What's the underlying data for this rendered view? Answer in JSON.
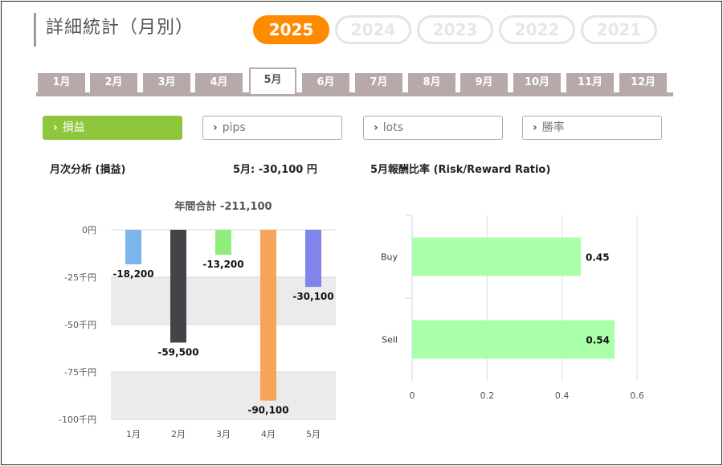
{
  "title": "詳細統計（月別）",
  "years": [
    {
      "label": "2025",
      "active": true
    },
    {
      "label": "2024",
      "active": false
    },
    {
      "label": "2023",
      "active": false
    },
    {
      "label": "2022",
      "active": false
    },
    {
      "label": "2021",
      "active": false
    }
  ],
  "months": [
    {
      "label": "1月",
      "active": false
    },
    {
      "label": "2月",
      "active": false
    },
    {
      "label": "3月",
      "active": false
    },
    {
      "label": "4月",
      "active": false
    },
    {
      "label": "5月",
      "active": true
    },
    {
      "label": "6月",
      "active": false
    },
    {
      "label": "7月",
      "active": false
    },
    {
      "label": "8月",
      "active": false
    },
    {
      "label": "9月",
      "active": false
    },
    {
      "label": "10月",
      "active": false
    },
    {
      "label": "11月",
      "active": false
    },
    {
      "label": "12月",
      "active": false
    }
  ],
  "filters": [
    {
      "label": "損益",
      "active": true
    },
    {
      "label": "pips",
      "active": false
    },
    {
      "label": "lots",
      "active": false
    },
    {
      "label": "勝率",
      "active": false
    }
  ],
  "left_header": "月次分析 (損益)",
  "month_summary": "5月:  -30,100 円",
  "right_header": "5月報酬比率 (Risk/Reward Ratio)",
  "colors": {
    "accent": "#ff8a00",
    "filter_active": "#8ec73b",
    "tab": "#b7a9a9"
  },
  "chart_data": [
    {
      "type": "bar",
      "title": "年間合計 -211,100",
      "categories": [
        "1月",
        "2月",
        "3月",
        "4月",
        "5月"
      ],
      "values": [
        -18200,
        -59500,
        -13200,
        -90100,
        -30100
      ],
      "value_labels": [
        "-18,200",
        "-59,500",
        "-13,200",
        "-90,100",
        "-30,100"
      ],
      "colors": [
        "#7cb5ec",
        "#434348",
        "#90ed7d",
        "#f7a35c",
        "#8085e9"
      ],
      "yticks": [
        0,
        -25000,
        -50000,
        -75000,
        -100000
      ],
      "ytick_labels": [
        "0円",
        "-25千円",
        "-50千円",
        "-75千円",
        "-100千円"
      ],
      "ylim": [
        -100000,
        0
      ],
      "grid": "alternating bands"
    },
    {
      "type": "bar",
      "orientation": "horizontal",
      "categories": [
        "Buy",
        "Sell"
      ],
      "values": [
        0.45,
        0.54
      ],
      "value_labels": [
        "0.45",
        "0.54"
      ],
      "color": "#aaffaa",
      "xticks": [
        0,
        0.2,
        0.4,
        0.6
      ],
      "xtick_labels": [
        "0",
        "0.2",
        "0.4",
        "0.6"
      ],
      "xlim": [
        0,
        0.6
      ],
      "grid": "vertical lines"
    }
  ]
}
